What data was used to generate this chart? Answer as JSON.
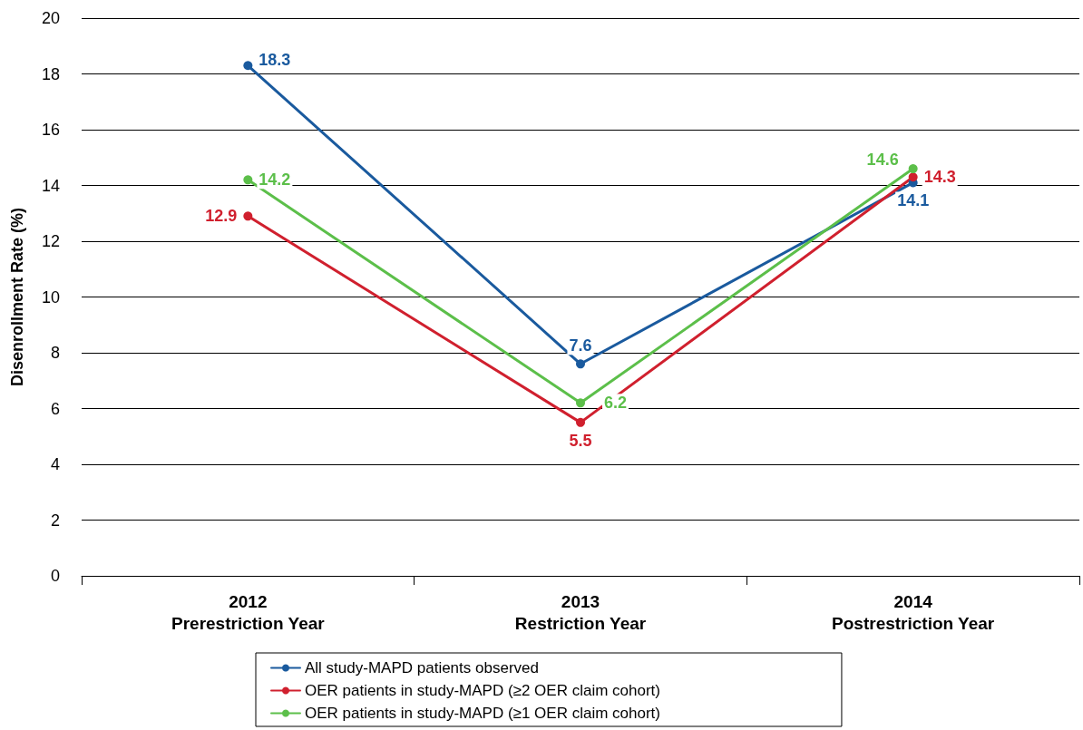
{
  "chart_data": {
    "type": "line",
    "ylabel": "Disenrollment Rate (%)",
    "categories": [
      "2012\nPrerestriction Year",
      "2013\nRestriction Year",
      "2014\nPostrestriction Year"
    ],
    "series": [
      {
        "name": "All study-MAPD patients observed",
        "color": "#1a5a9e",
        "values": [
          18.3,
          7.6,
          14.1
        ]
      },
      {
        "name": "OER patients in study-MAPD (≥2 OER claim cohort)",
        "color": "#d0202e",
        "values": [
          12.9,
          5.5,
          14.3
        ]
      },
      {
        "name": "OER patients in study-MAPD (≥1 OER claim cohort)",
        "color": "#5cbf4a",
        "values": [
          14.2,
          6.2,
          14.6
        ]
      }
    ],
    "ylim": [
      0,
      20
    ],
    "yticks": [
      0,
      2,
      4,
      6,
      8,
      10,
      12,
      14,
      16,
      18,
      20
    ],
    "grid": "y",
    "legend": "bottom",
    "marker": "circle",
    "line_style": "solid",
    "data_labels": true
  }
}
